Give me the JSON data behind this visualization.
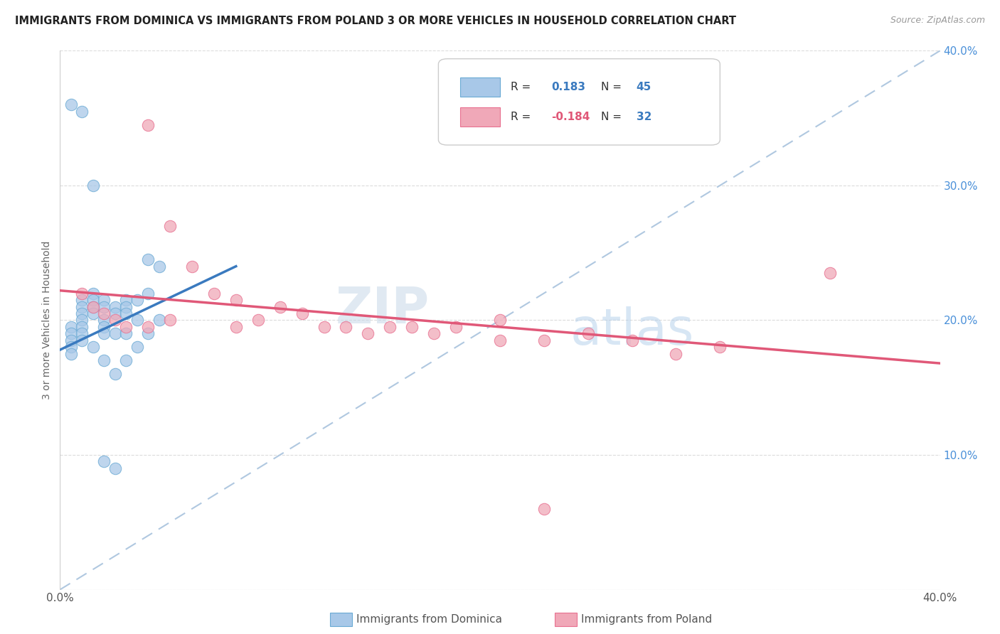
{
  "title": "IMMIGRANTS FROM DOMINICA VS IMMIGRANTS FROM POLAND 3 OR MORE VEHICLES IN HOUSEHOLD CORRELATION CHART",
  "source": "Source: ZipAtlas.com",
  "ylabel": "3 or more Vehicles in Household",
  "x_min": 0.0,
  "x_max": 0.4,
  "y_min": 0.0,
  "y_max": 0.4,
  "dominica_color": "#a8c8e8",
  "poland_color": "#f0a8b8",
  "dominica_edge_color": "#6aaad4",
  "poland_edge_color": "#e87090",
  "dominica_line_color": "#3a7abf",
  "poland_line_color": "#e05878",
  "diagonal_line_color": "#b0c8e0",
  "right_axis_color": "#4a90d9",
  "legend_r_dominica": "0.183",
  "legend_n_dominica": "45",
  "legend_r_poland": "-0.184",
  "legend_n_poland": "32",
  "watermark_zip": "ZIP",
  "watermark_atlas": "atlas",
  "dom_line_x0": 0.0,
  "dom_line_x1": 0.08,
  "dom_line_y0": 0.178,
  "dom_line_y1": 0.24,
  "pol_line_x0": 0.0,
  "pol_line_x1": 0.4,
  "pol_line_y0": 0.222,
  "pol_line_y1": 0.168,
  "dominica_x": [
    0.005,
    0.005,
    0.005,
    0.005,
    0.005,
    0.01,
    0.01,
    0.01,
    0.01,
    0.01,
    0.01,
    0.01,
    0.015,
    0.015,
    0.015,
    0.015,
    0.015,
    0.02,
    0.02,
    0.02,
    0.02,
    0.02,
    0.02,
    0.025,
    0.025,
    0.025,
    0.025,
    0.03,
    0.03,
    0.03,
    0.03,
    0.03,
    0.035,
    0.035,
    0.035,
    0.04,
    0.04,
    0.04,
    0.045,
    0.045,
    0.005,
    0.01,
    0.015,
    0.02,
    0.025
  ],
  "dominica_y": [
    0.195,
    0.19,
    0.185,
    0.18,
    0.175,
    0.215,
    0.21,
    0.205,
    0.2,
    0.195,
    0.19,
    0.185,
    0.22,
    0.215,
    0.21,
    0.205,
    0.18,
    0.215,
    0.21,
    0.2,
    0.195,
    0.19,
    0.17,
    0.21,
    0.205,
    0.19,
    0.16,
    0.215,
    0.21,
    0.205,
    0.19,
    0.17,
    0.215,
    0.2,
    0.18,
    0.245,
    0.22,
    0.19,
    0.24,
    0.2,
    0.36,
    0.355,
    0.3,
    0.095,
    0.09
  ],
  "poland_x": [
    0.01,
    0.015,
    0.02,
    0.025,
    0.03,
    0.04,
    0.04,
    0.05,
    0.05,
    0.06,
    0.07,
    0.08,
    0.08,
    0.09,
    0.1,
    0.11,
    0.12,
    0.13,
    0.14,
    0.15,
    0.16,
    0.17,
    0.18,
    0.2,
    0.2,
    0.22,
    0.24,
    0.26,
    0.28,
    0.3,
    0.22,
    0.35
  ],
  "poland_y": [
    0.22,
    0.21,
    0.205,
    0.2,
    0.195,
    0.345,
    0.195,
    0.27,
    0.2,
    0.24,
    0.22,
    0.215,
    0.195,
    0.2,
    0.21,
    0.205,
    0.195,
    0.195,
    0.19,
    0.195,
    0.195,
    0.19,
    0.195,
    0.2,
    0.185,
    0.185,
    0.19,
    0.185,
    0.175,
    0.18,
    0.06,
    0.235
  ]
}
